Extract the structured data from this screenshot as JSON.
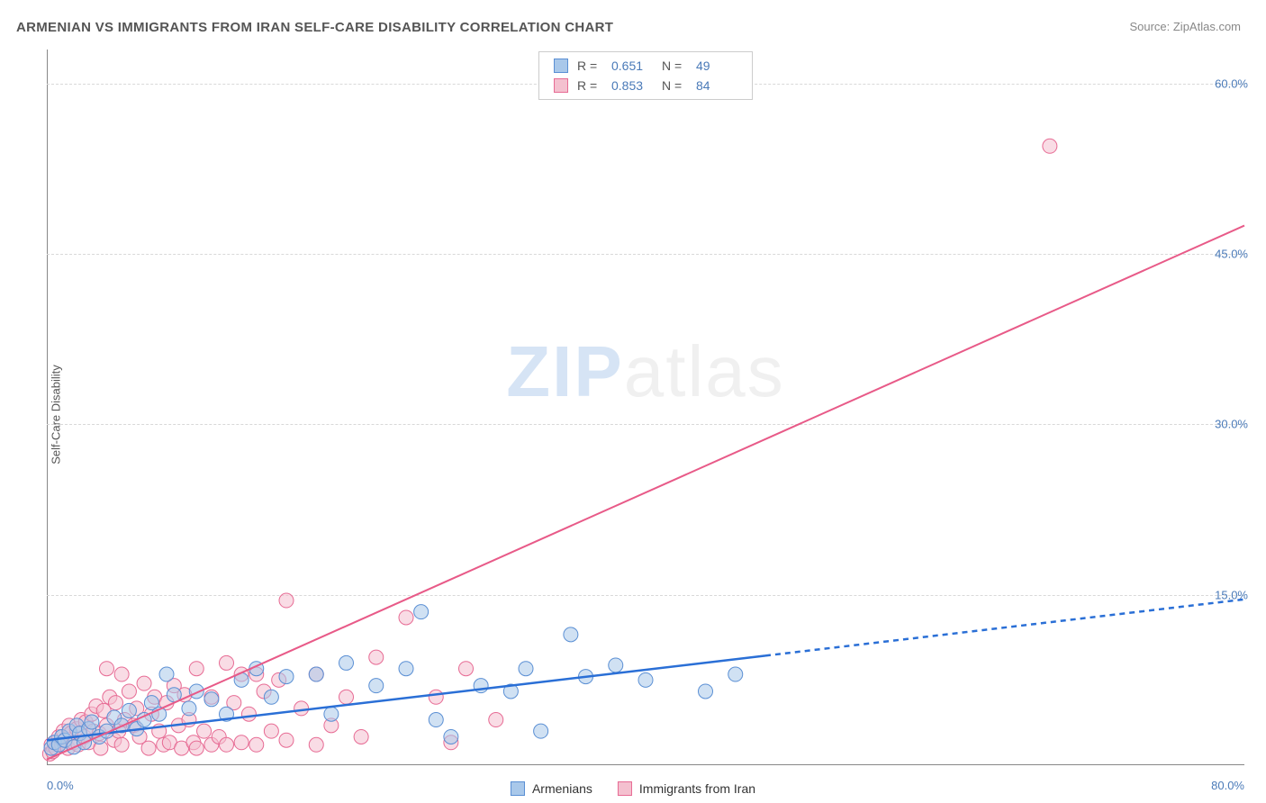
{
  "title": "ARMENIAN VS IMMIGRANTS FROM IRAN SELF-CARE DISABILITY CORRELATION CHART",
  "source_label": "Source: ZipAtlas.com",
  "y_axis_label": "Self-Care Disability",
  "watermark_a": "ZIP",
  "watermark_b": "atlas",
  "chart": {
    "type": "scatter-with-regression",
    "xlim": [
      0,
      80
    ],
    "ylim": [
      0,
      63
    ],
    "x_ticks": [
      {
        "value": 0,
        "label": "0.0%",
        "pos": "left"
      },
      {
        "value": 80,
        "label": "80.0%",
        "pos": "right"
      }
    ],
    "y_ticks": [
      {
        "value": 15,
        "label": "15.0%"
      },
      {
        "value": 30,
        "label": "30.0%"
      },
      {
        "value": 45,
        "label": "45.0%"
      },
      {
        "value": 60,
        "label": "60.0%"
      }
    ],
    "gridlines_y": [
      15,
      30,
      45,
      60
    ],
    "background_color": "#ffffff",
    "grid_color": "#d8d8d8",
    "axis_color": "#888888",
    "point_radius": 8,
    "point_opacity": 0.55,
    "series": [
      {
        "name": "Armenians",
        "color_fill": "#a9c8ea",
        "color_stroke": "#5a8fd4",
        "regression": {
          "color": "#2a6fd6",
          "width": 2.5,
          "solid_until_x": 48,
          "y_at_x0": 2.2,
          "y_at_x80": 14.6,
          "dash": "6,5"
        },
        "stats": {
          "R_label": "R  =",
          "R": "0.651",
          "N_label": "N  =",
          "N": "49"
        },
        "points": [
          [
            0.3,
            1.5
          ],
          [
            0.5,
            2.0
          ],
          [
            0.8,
            1.8
          ],
          [
            1.0,
            2.5
          ],
          [
            1.2,
            2.2
          ],
          [
            1.5,
            3.0
          ],
          [
            1.8,
            1.6
          ],
          [
            2.0,
            3.5
          ],
          [
            2.2,
            2.8
          ],
          [
            2.5,
            2.0
          ],
          [
            2.8,
            3.2
          ],
          [
            3.0,
            3.8
          ],
          [
            3.5,
            2.5
          ],
          [
            4.0,
            3.0
          ],
          [
            4.5,
            4.2
          ],
          [
            5.0,
            3.5
          ],
          [
            5.5,
            4.8
          ],
          [
            6.0,
            3.2
          ],
          [
            6.5,
            4.0
          ],
          [
            7.0,
            5.5
          ],
          [
            7.5,
            4.5
          ],
          [
            8.0,
            8.0
          ],
          [
            8.5,
            6.2
          ],
          [
            9.5,
            5.0
          ],
          [
            10.0,
            6.5
          ],
          [
            11.0,
            5.8
          ],
          [
            12.0,
            4.5
          ],
          [
            13.0,
            7.5
          ],
          [
            14.0,
            8.5
          ],
          [
            15.0,
            6.0
          ],
          [
            16.0,
            7.8
          ],
          [
            18.0,
            8.0
          ],
          [
            19.0,
            4.5
          ],
          [
            20.0,
            9.0
          ],
          [
            22.0,
            7.0
          ],
          [
            24.0,
            8.5
          ],
          [
            25.0,
            13.5
          ],
          [
            26.0,
            4.0
          ],
          [
            27.0,
            2.5
          ],
          [
            29.0,
            7.0
          ],
          [
            31.0,
            6.5
          ],
          [
            32.0,
            8.5
          ],
          [
            33.0,
            3.0
          ],
          [
            35.0,
            11.5
          ],
          [
            36.0,
            7.8
          ],
          [
            38.0,
            8.8
          ],
          [
            40.0,
            7.5
          ],
          [
            44.0,
            6.5
          ],
          [
            46.0,
            8.0
          ]
        ]
      },
      {
        "name": "Immigrants from Iran",
        "color_fill": "#f4c0cf",
        "color_stroke": "#e76b94",
        "regression": {
          "color": "#e85a88",
          "width": 2.0,
          "solid_until_x": 80,
          "y_at_x0": 0.5,
          "y_at_x80": 47.5,
          "dash": "none"
        },
        "stats": {
          "R_label": "R  =",
          "R": "0.853",
          "N_label": "N  =",
          "N": "84"
        },
        "points": [
          [
            0.2,
            1.0
          ],
          [
            0.3,
            1.8
          ],
          [
            0.4,
            1.2
          ],
          [
            0.5,
            2.0
          ],
          [
            0.6,
            1.5
          ],
          [
            0.8,
            2.5
          ],
          [
            1.0,
            1.8
          ],
          [
            1.1,
            3.0
          ],
          [
            1.2,
            2.2
          ],
          [
            1.4,
            1.5
          ],
          [
            1.5,
            3.5
          ],
          [
            1.6,
            2.8
          ],
          [
            1.8,
            2.0
          ],
          [
            2.0,
            3.2
          ],
          [
            2.1,
            1.8
          ],
          [
            2.3,
            4.0
          ],
          [
            2.5,
            2.5
          ],
          [
            2.6,
            3.8
          ],
          [
            2.8,
            2.0
          ],
          [
            3.0,
            4.5
          ],
          [
            3.1,
            3.0
          ],
          [
            3.3,
            5.2
          ],
          [
            3.5,
            2.8
          ],
          [
            3.6,
            1.5
          ],
          [
            3.8,
            4.8
          ],
          [
            4.0,
            8.5
          ],
          [
            4.0,
            3.5
          ],
          [
            4.2,
            6.0
          ],
          [
            4.5,
            2.2
          ],
          [
            4.6,
            5.5
          ],
          [
            4.8,
            3.0
          ],
          [
            5.0,
            8.0
          ],
          [
            5.0,
            1.8
          ],
          [
            5.2,
            4.0
          ],
          [
            5.5,
            6.5
          ],
          [
            5.8,
            3.5
          ],
          [
            6.0,
            5.0
          ],
          [
            6.2,
            2.5
          ],
          [
            6.5,
            7.2
          ],
          [
            6.8,
            1.5
          ],
          [
            7.0,
            4.5
          ],
          [
            7.2,
            6.0
          ],
          [
            7.5,
            3.0
          ],
          [
            7.8,
            1.8
          ],
          [
            8.0,
            5.5
          ],
          [
            8.2,
            2.0
          ],
          [
            8.5,
            7.0
          ],
          [
            8.8,
            3.5
          ],
          [
            9.0,
            1.5
          ],
          [
            9.2,
            6.2
          ],
          [
            9.5,
            4.0
          ],
          [
            9.8,
            2.0
          ],
          [
            10.0,
            8.5
          ],
          [
            10.0,
            1.5
          ],
          [
            10.5,
            3.0
          ],
          [
            11.0,
            6.0
          ],
          [
            11.0,
            1.8
          ],
          [
            11.5,
            2.5
          ],
          [
            12.0,
            9.0
          ],
          [
            12.0,
            1.8
          ],
          [
            12.5,
            5.5
          ],
          [
            13.0,
            2.0
          ],
          [
            13.0,
            8.0
          ],
          [
            13.5,
            4.5
          ],
          [
            14.0,
            1.8
          ],
          [
            14.0,
            8.0
          ],
          [
            14.5,
            6.5
          ],
          [
            15.0,
            3.0
          ],
          [
            15.5,
            7.5
          ],
          [
            16.0,
            2.2
          ],
          [
            16.0,
            14.5
          ],
          [
            17.0,
            5.0
          ],
          [
            18.0,
            1.8
          ],
          [
            18.0,
            8.0
          ],
          [
            19.0,
            3.5
          ],
          [
            20.0,
            6.0
          ],
          [
            21.0,
            2.5
          ],
          [
            22.0,
            9.5
          ],
          [
            24.0,
            13.0
          ],
          [
            26.0,
            6.0
          ],
          [
            27.0,
            2.0
          ],
          [
            28.0,
            8.5
          ],
          [
            30.0,
            4.0
          ],
          [
            67.0,
            54.5
          ]
        ]
      }
    ],
    "legend_bottom": [
      {
        "swatch_fill": "#a9c8ea",
        "swatch_stroke": "#5a8fd4",
        "label": "Armenians"
      },
      {
        "swatch_fill": "#f4c0cf",
        "swatch_stroke": "#e76b94",
        "label": "Immigrants from Iran"
      }
    ]
  }
}
